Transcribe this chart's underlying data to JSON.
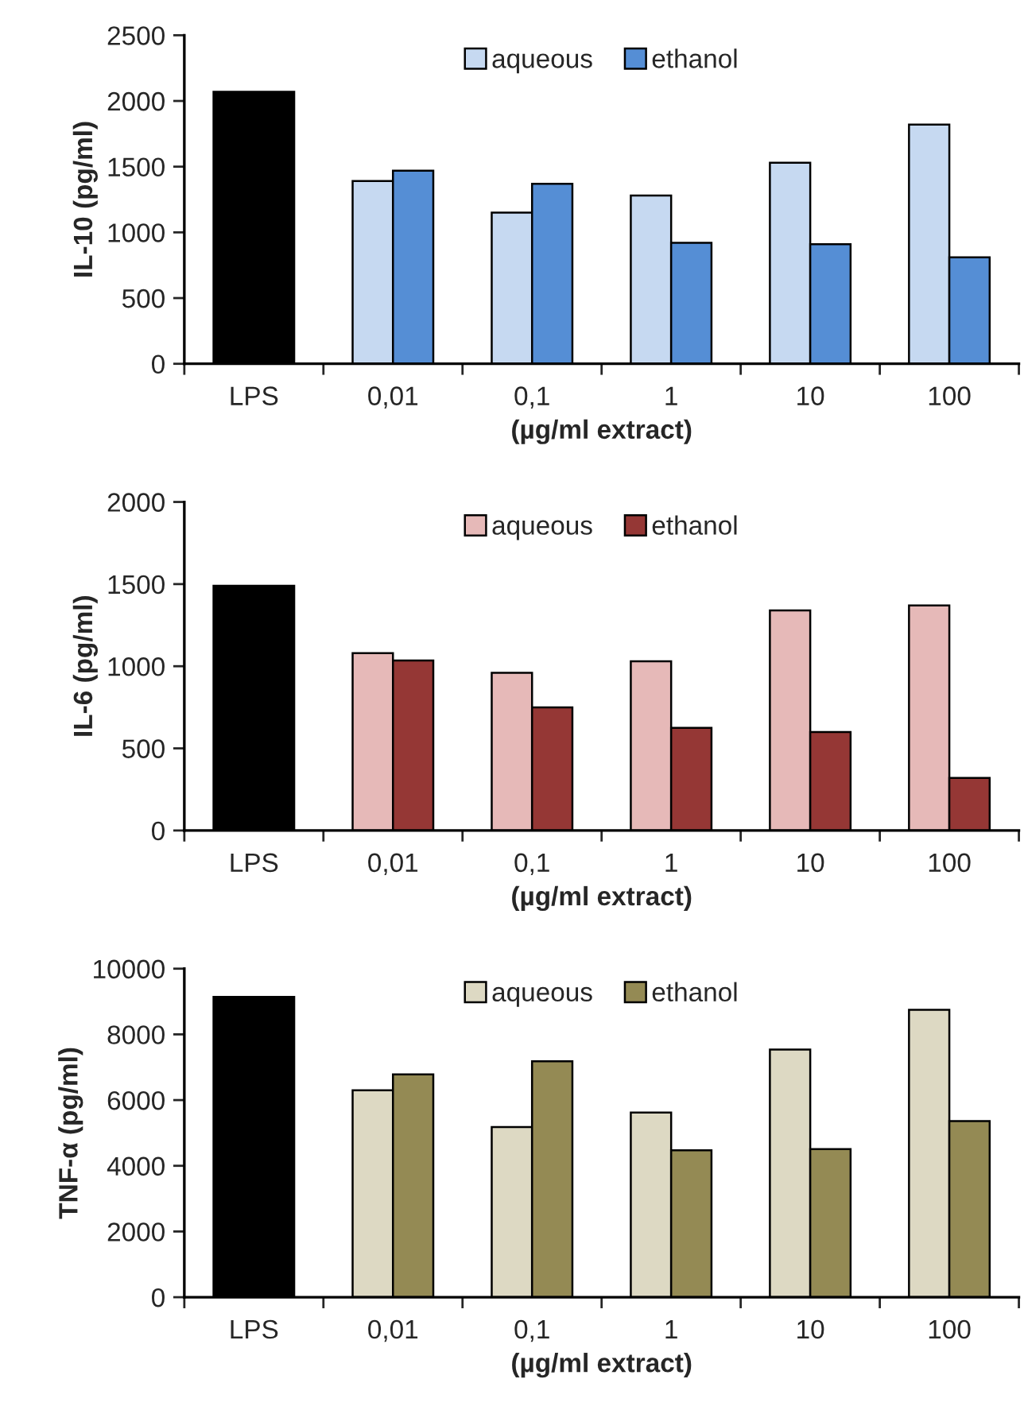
{
  "chart_data": [
    {
      "type": "bar",
      "xlabel": "(µg/ml extract)",
      "ylabel": "IL-10 (pg/ml)",
      "categories": [
        "LPS",
        "0,01",
        "0,1",
        "1",
        "10",
        "100"
      ],
      "series": [
        {
          "color": "#000000",
          "values": [
            2070,
            null,
            null,
            null,
            null,
            null
          ]
        },
        {
          "name": "aqueous",
          "color": "#c6d9f1",
          "values": [
            null,
            1390,
            1150,
            1280,
            1530,
            1820
          ]
        },
        {
          "name": "ethanol",
          "color": "#558ed5",
          "values": [
            null,
            1470,
            1370,
            920,
            910,
            810
          ]
        }
      ],
      "ylim": [
        0,
        2500
      ],
      "yticks": [
        0,
        500,
        1000,
        1500,
        2000,
        2500
      ],
      "legend": "top",
      "grid": false
    },
    {
      "type": "bar",
      "xlabel": "(µg/ml extract)",
      "ylabel": "IL-6 (pg/ml)",
      "categories": [
        "LPS",
        "0,01",
        "0,1",
        "1",
        "10",
        "100"
      ],
      "series": [
        {
          "color": "#000000",
          "values": [
            1490,
            null,
            null,
            null,
            null,
            null
          ]
        },
        {
          "name": "aqueous",
          "color": "#e6b9b8",
          "values": [
            null,
            1080,
            960,
            1030,
            1340,
            1370
          ]
        },
        {
          "name": "ethanol",
          "color": "#953735",
          "values": [
            null,
            1035,
            750,
            625,
            600,
            320
          ]
        }
      ],
      "ylim": [
        0,
        2000
      ],
      "yticks": [
        0,
        500,
        1000,
        1500,
        2000
      ],
      "legend": "top",
      "grid": false
    },
    {
      "type": "bar",
      "xlabel": "(µg/ml extract)",
      "ylabel": "TNF-α (pg/ml)",
      "categories": [
        "LPS",
        "0,01",
        "0,1",
        "1",
        "10",
        "100"
      ],
      "series": [
        {
          "color": "#000000",
          "values": [
            9140,
            null,
            null,
            null,
            null,
            null
          ]
        },
        {
          "name": "aqueous",
          "color": "#ddd9c3",
          "values": [
            null,
            6300,
            5180,
            5620,
            7540,
            8750
          ]
        },
        {
          "name": "ethanol",
          "color": "#948a54",
          "values": [
            null,
            6780,
            7180,
            4470,
            4510,
            5360
          ]
        }
      ],
      "ylim": [
        0,
        10000
      ],
      "yticks": [
        0,
        2000,
        4000,
        6000,
        8000,
        10000
      ],
      "legend": "top",
      "grid": false
    }
  ]
}
